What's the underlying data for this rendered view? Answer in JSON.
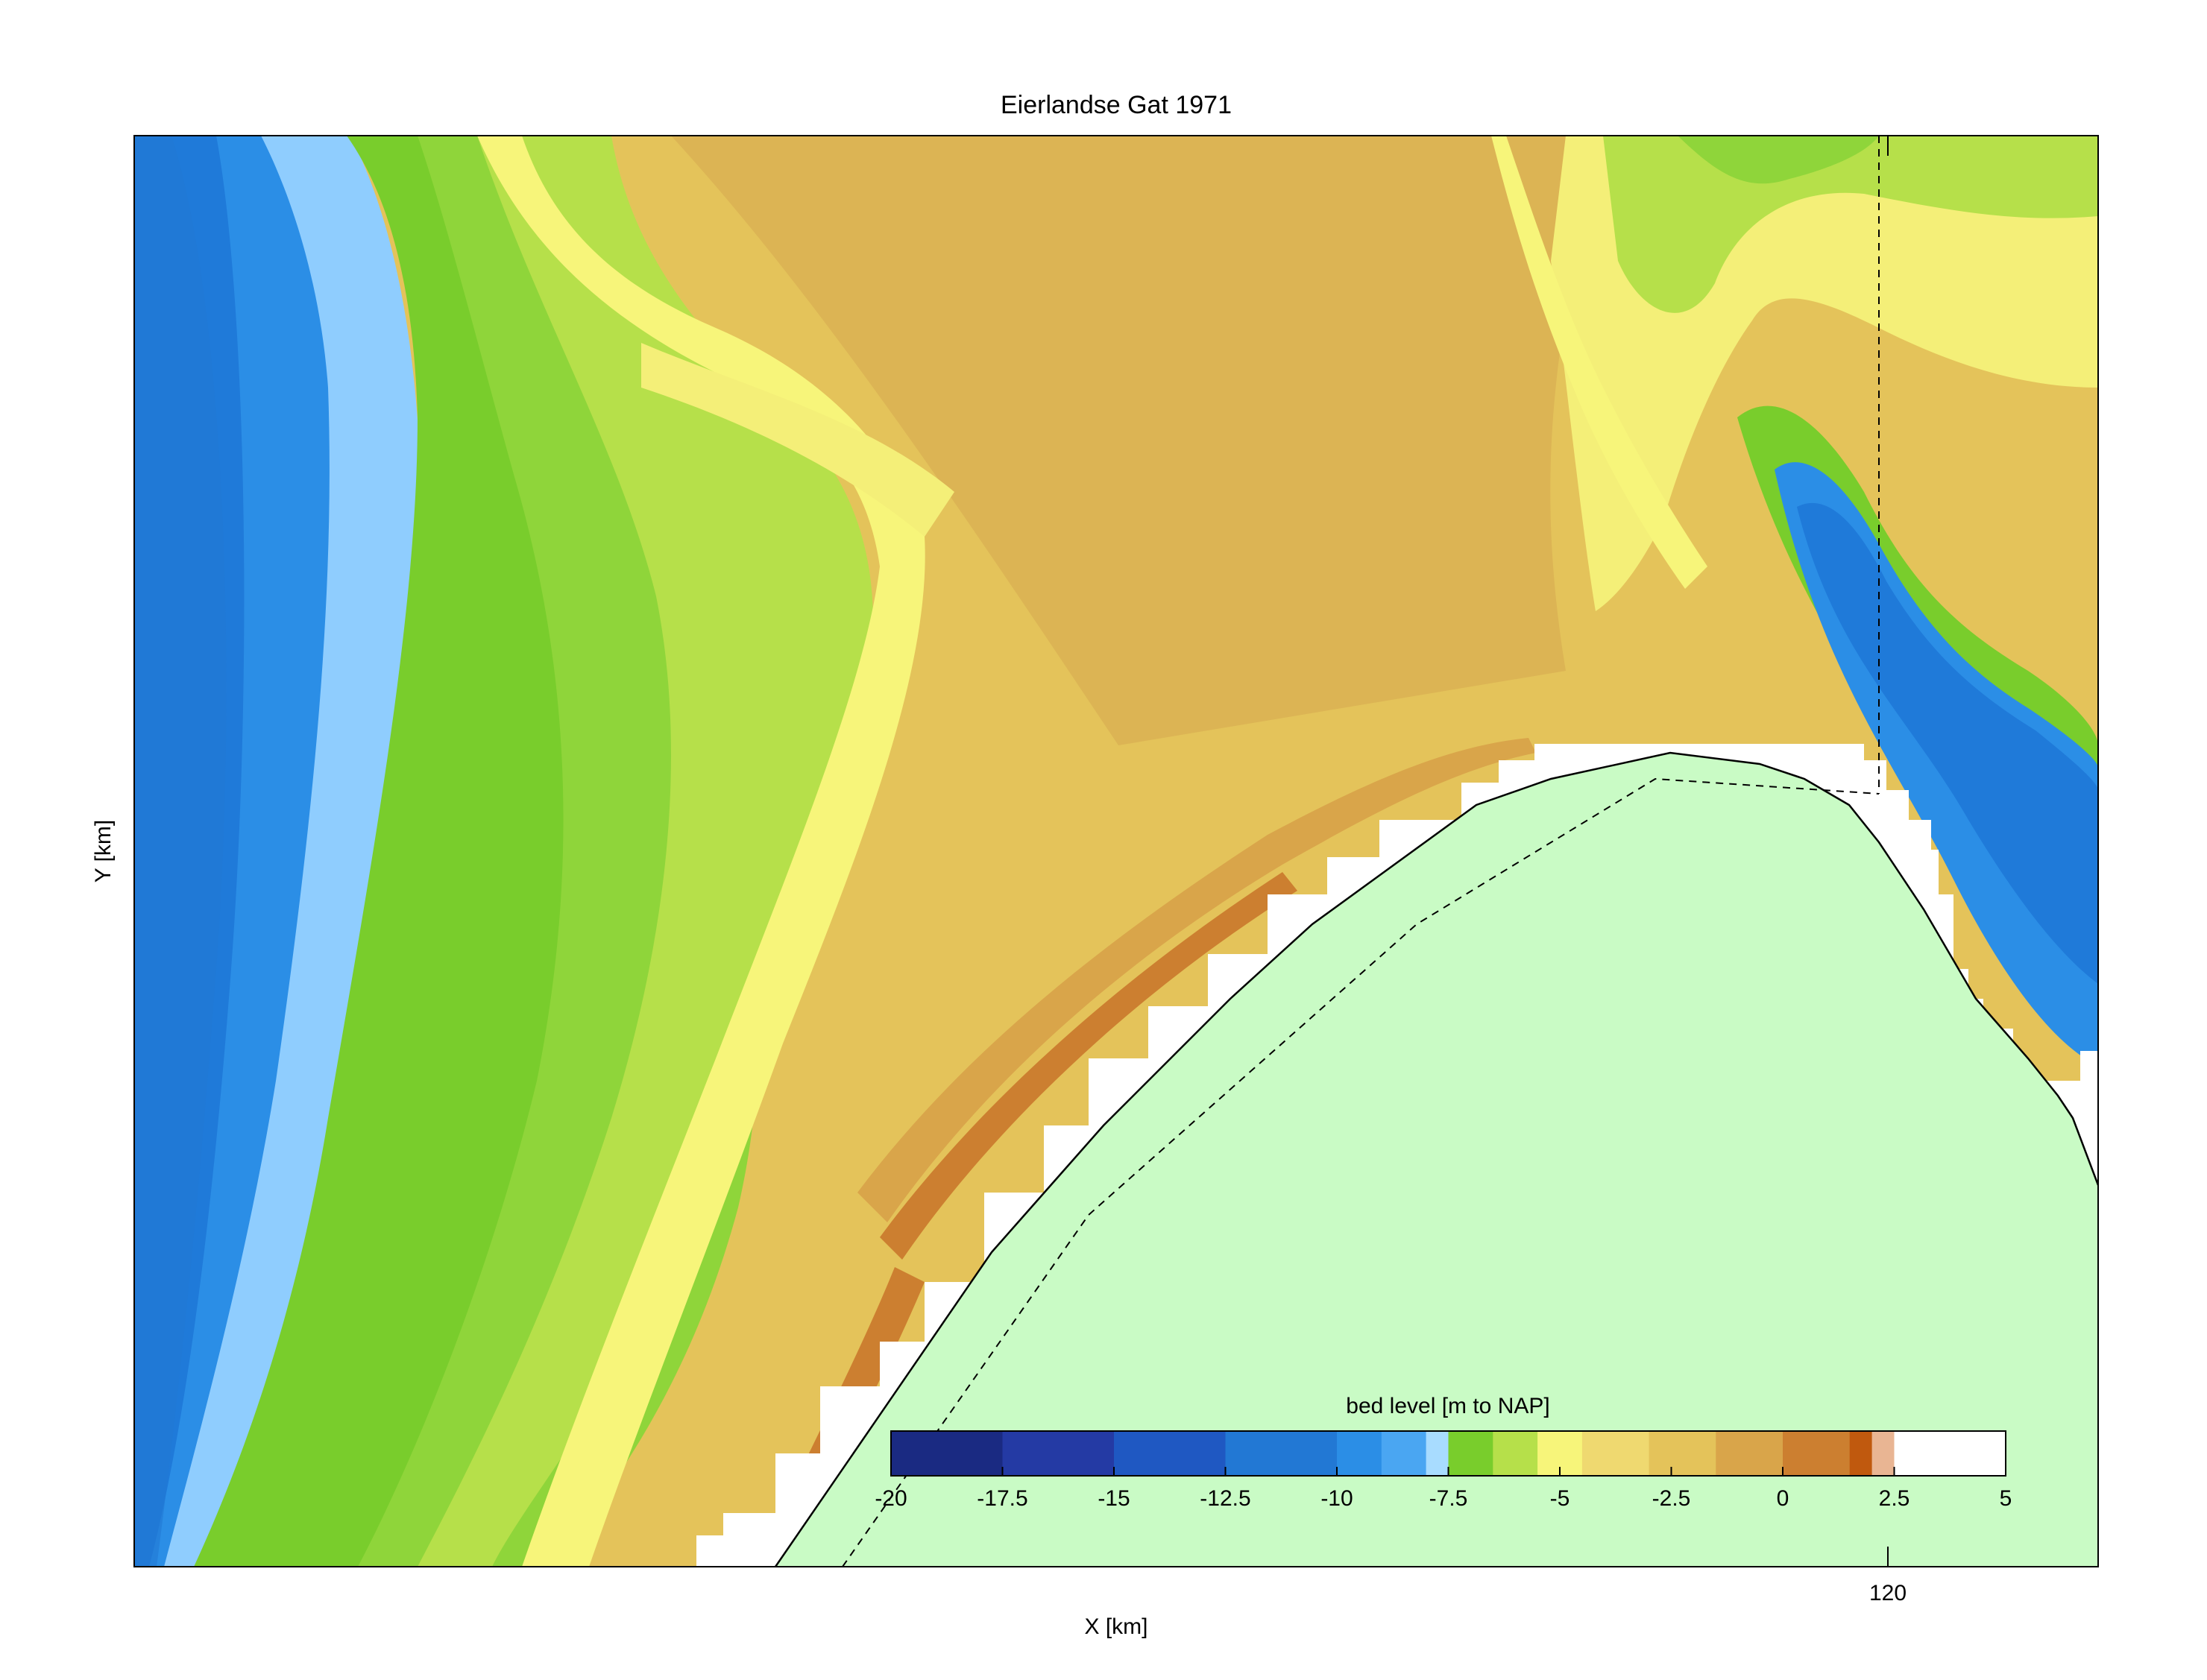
{
  "chart_data": {
    "type": "heatmap",
    "title": "Eierlandse Gat 1971",
    "xlabel": "X [km]",
    "ylabel": "Y [km]",
    "x_ticks": [
      "120"
    ],
    "y_ticks": [],
    "grid": false,
    "colorbar": {
      "label": "bed level [m to NAP]",
      "range": [
        -20,
        5
      ],
      "ticks": [
        -20,
        -17.5,
        -15,
        -12.5,
        -10,
        -7.5,
        -5,
        -2.5,
        0,
        2.5,
        5
      ],
      "tick_labels": [
        "-20",
        "-17.5",
        "-15",
        "-12.5",
        "-10",
        "-7.5",
        "-5",
        "-2.5",
        "0",
        "2.5",
        "5"
      ],
      "placement": "bottom-right, inside axes",
      "levels": [
        {
          "from": -20,
          "to": -17.5,
          "color": "#1a2a82"
        },
        {
          "from": -17.5,
          "to": -15,
          "color": "#243aa4"
        },
        {
          "from": -15,
          "to": -12.5,
          "color": "#1f58c2"
        },
        {
          "from": -12.5,
          "to": -10,
          "color": "#2278d4"
        },
        {
          "from": -10,
          "to": -9,
          "color": "#2b8ee6"
        },
        {
          "from": -9,
          "to": -8,
          "color": "#4aa6f2"
        },
        {
          "from": -8,
          "to": -7.5,
          "color": "#a8dcff"
        },
        {
          "from": -7.5,
          "to": -6.5,
          "color": "#79cd2c"
        },
        {
          "from": -6.5,
          "to": -5.5,
          "color": "#b6e04a"
        },
        {
          "from": -5.5,
          "to": -4.5,
          "color": "#f7f57a"
        },
        {
          "from": -4.5,
          "to": -3,
          "color": "#efd970"
        },
        {
          "from": -3,
          "to": -1.5,
          "color": "#e4c35a"
        },
        {
          "from": -1.5,
          "to": 0,
          "color": "#d9a54a"
        },
        {
          "from": 0,
          "to": 1.5,
          "color": "#cc7f30"
        },
        {
          "from": 1.5,
          "to": 2,
          "color": "#c0590e"
        },
        {
          "from": 2,
          "to": 2.5,
          "color": "#e9b593"
        },
        {
          "from": 2.5,
          "to": 5,
          "color": "#ffffff"
        }
      ]
    },
    "land_color": "#c9fbc5",
    "dry_color": "#ffffff",
    "features": [
      "coastline (solid)",
      "dike line (dashed)",
      "vertical reference line (dashed)"
    ]
  }
}
